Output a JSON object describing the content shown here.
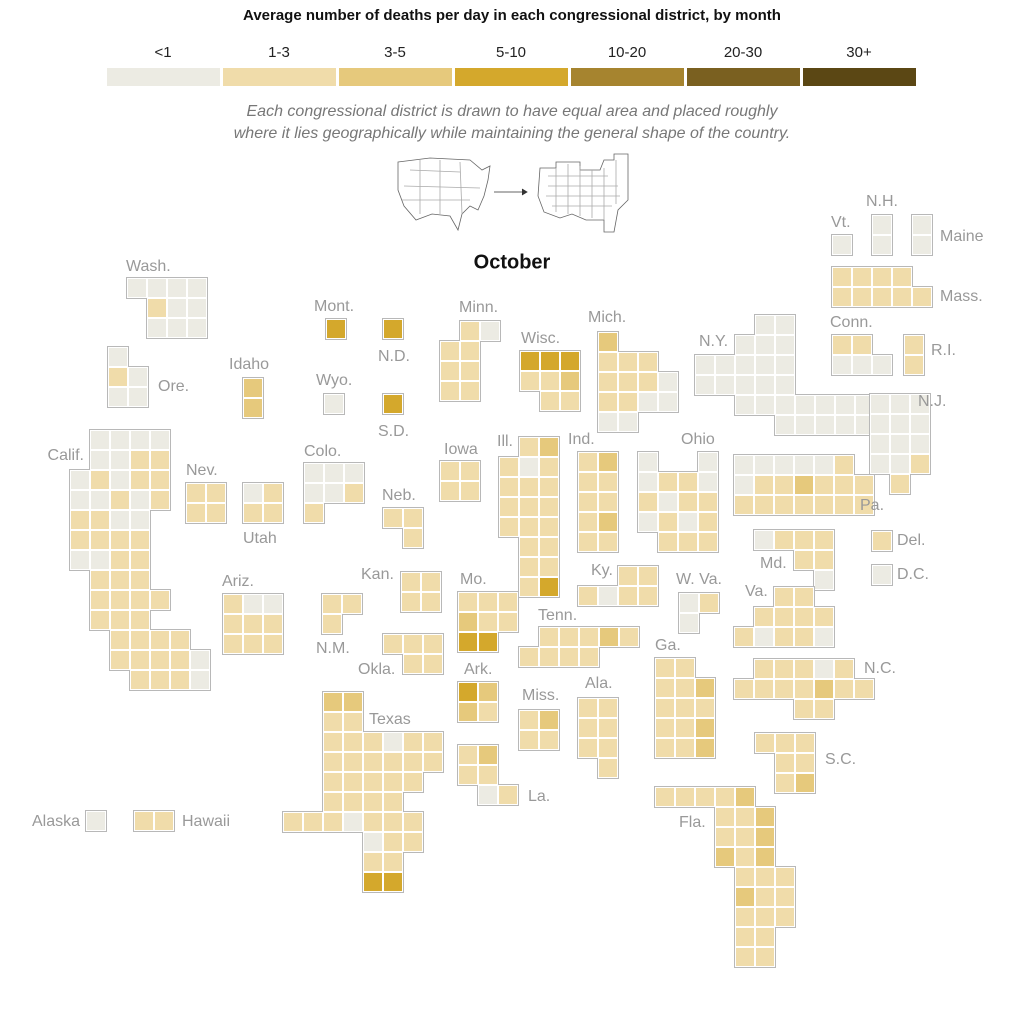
{
  "legend": {
    "title": "Average number of deaths per day in each congressional district, by month",
    "bins": [
      {
        "label": "<1",
        "color": "#ecebe3"
      },
      {
        "label": "1-3",
        "color": "#f0dcaa"
      },
      {
        "label": "3-5",
        "color": "#e6c97c"
      },
      {
        "label": "5-10",
        "color": "#d4a82c"
      },
      {
        "label": "10-20",
        "color": "#a6842f"
      },
      {
        "label": "20-30",
        "color": "#7a6020"
      },
      {
        "label": "30+",
        "color": "#5b4714"
      }
    ]
  },
  "note_lines": [
    "Each congressional district is drawn to have equal area and placed roughly",
    "where it lies geographically while maintaining the general shape of the country."
  ],
  "month": "October",
  "states": [
    {
      "label": "Wash.",
      "districts": [
        "<1",
        "<1",
        "<1",
        "<1",
        "1-3",
        "<1",
        "<1",
        "<1",
        "<1",
        "<1"
      ]
    },
    {
      "label": "Ore.",
      "districts": [
        "<1",
        "1-3",
        "<1",
        "<1",
        "<1"
      ]
    },
    {
      "label": "Calif.",
      "districts": [
        "<1",
        "<1",
        "<1",
        "<1",
        "<1",
        "<1",
        "1-3",
        "1-3",
        "<1",
        "1-3",
        "<1",
        "1-3",
        "1-3",
        "<1",
        "<1",
        "1-3",
        "<1",
        "1-3",
        "1-3",
        "1-3",
        "<1",
        "<1",
        "1-3",
        "1-3",
        "1-3",
        "1-3",
        "<1",
        "<1",
        "1-3",
        "1-3",
        "1-3",
        "1-3",
        "1-3",
        "1-3",
        "1-3",
        "1-3",
        "1-3",
        "1-3",
        "1-3",
        "1-3",
        "1-3",
        "1-3",
        "1-3",
        "1-3",
        "1-3",
        "1-3",
        "1-3",
        "1-3",
        "<1",
        "1-3",
        "1-3",
        "1-3",
        "<1"
      ]
    },
    {
      "label": "Idaho",
      "districts": [
        "3-5",
        "3-5"
      ]
    },
    {
      "label": "Mont.",
      "districts": [
        "5-10"
      ]
    },
    {
      "label": "N.D.",
      "districts": [
        "5-10"
      ]
    },
    {
      "label": "Wyo.",
      "districts": [
        "<1"
      ]
    },
    {
      "label": "S.D.",
      "districts": [
        "5-10"
      ]
    },
    {
      "label": "Nev.",
      "districts": [
        "1-3",
        "1-3",
        "1-3",
        "1-3"
      ]
    },
    {
      "label": "Utah",
      "districts": [
        "<1",
        "1-3",
        "1-3",
        "1-3"
      ]
    },
    {
      "label": "Colo.",
      "districts": [
        "<1",
        "<1",
        "<1",
        "<1",
        "<1",
        "1-3",
        "1-3"
      ]
    },
    {
      "label": "Ariz.",
      "districts": [
        "1-3",
        "<1",
        "<1",
        "1-3",
        "1-3",
        "1-3",
        "1-3",
        "1-3",
        "1-3"
      ]
    },
    {
      "label": "N.M.",
      "districts": [
        "1-3",
        "1-3",
        "1-3"
      ]
    },
    {
      "label": "Neb.",
      "districts": [
        "1-3",
        "1-3",
        "1-3"
      ]
    },
    {
      "label": "Kan.",
      "districts": [
        "1-3",
        "1-3",
        "1-3",
        "1-3"
      ]
    },
    {
      "label": "Okla.",
      "districts": [
        "1-3",
        "1-3",
        "1-3",
        "1-3",
        "1-3"
      ]
    },
    {
      "label": "Texas",
      "districts": [
        "3-5",
        "3-5",
        "1-3",
        "1-3",
        "1-3",
        "1-3",
        "1-3",
        "<1",
        "1-3",
        "1-3",
        "1-3",
        "1-3",
        "1-3",
        "1-3",
        "1-3",
        "1-3",
        "1-3",
        "1-3",
        "1-3",
        "1-3",
        "1-3",
        "1-3",
        "1-3",
        "1-3",
        "1-3",
        "1-3",
        "1-3",
        "1-3",
        "<1",
        "1-3",
        "1-3",
        "1-3",
        "<1",
        "1-3",
        "1-3",
        "1-3",
        "1-3",
        "5-10",
        "5-10"
      ]
    },
    {
      "label": "Minn.",
      "districts": [
        "1-3",
        "<1",
        "1-3",
        "1-3",
        "1-3",
        "1-3",
        "1-3",
        "1-3"
      ]
    },
    {
      "label": "Iowa",
      "districts": [
        "1-3",
        "1-3",
        "1-3",
        "1-3"
      ]
    },
    {
      "label": "Wisc.",
      "districts": [
        "5-10",
        "5-10",
        "5-10",
        "1-3",
        "1-3",
        "3-5",
        "1-3",
        "1-3"
      ]
    },
    {
      "label": "Ill.",
      "districts": [
        "1-3",
        "3-5",
        "1-3",
        "<1",
        "1-3",
        "1-3",
        "1-3",
        "1-3",
        "1-3",
        "1-3",
        "1-3",
        "1-3",
        "1-3",
        "1-3",
        "1-3",
        "1-3",
        "1-3",
        "1-3",
        "1-3",
        "5-10"
      ]
    },
    {
      "label": "Ind.",
      "districts": [
        "1-3",
        "3-5",
        "1-3",
        "1-3",
        "1-3",
        "1-3",
        "1-3",
        "3-5",
        "1-3",
        "1-3"
      ]
    },
    {
      "label": "Mich.",
      "districts": [
        "3-5",
        "1-3",
        "1-3",
        "1-3",
        "1-3",
        "1-3",
        "1-3",
        "<1",
        "1-3",
        "1-3",
        "<1",
        "<1",
        "<1",
        "<1"
      ]
    },
    {
      "label": "Ohio",
      "districts": [
        "<1",
        "<1",
        "<1",
        "1-3",
        "1-3",
        "<1",
        "1-3",
        "<1",
        "1-3",
        "1-3",
        "<1",
        "1-3",
        "<1",
        "1-3",
        "1-3",
        "1-3",
        "1-3"
      ]
    },
    {
      "label": "Ky.",
      "districts": [
        "1-3",
        "1-3",
        "1-3",
        "<1",
        "1-3",
        "1-3"
      ]
    },
    {
      "label": "Tenn.",
      "districts": [
        "1-3",
        "1-3",
        "1-3",
        "3-5",
        "1-3",
        "1-3",
        "1-3",
        "1-3",
        "1-3"
      ]
    },
    {
      "label": "Mo.",
      "districts": [
        "1-3",
        "1-3",
        "1-3",
        "3-5",
        "1-3",
        "1-3",
        "5-10",
        "5-10"
      ]
    },
    {
      "label": "Ark.",
      "districts": [
        "5-10",
        "3-5",
        "3-5",
        "1-3"
      ]
    },
    {
      "label": "Miss.",
      "districts": [
        "1-3",
        "3-5",
        "1-3",
        "1-3"
      ]
    },
    {
      "label": "La.",
      "districts": [
        "1-3",
        "3-5",
        "1-3",
        "1-3",
        "<1",
        "1-3"
      ]
    },
    {
      "label": "Ala.",
      "districts": [
        "1-3",
        "1-3",
        "1-3",
        "1-3",
        "1-3",
        "1-3",
        "1-3"
      ]
    },
    {
      "label": "Ga.",
      "districts": [
        "1-3",
        "1-3",
        "1-3",
        "1-3",
        "3-5",
        "1-3",
        "1-3",
        "1-3",
        "1-3",
        "1-3",
        "3-5",
        "1-3",
        "1-3",
        "3-5"
      ]
    },
    {
      "label": "Fla.",
      "districts": [
        "1-3",
        "1-3",
        "1-3",
        "1-3",
        "3-5",
        "1-3",
        "1-3",
        "3-5",
        "1-3",
        "1-3",
        "3-5",
        "3-5",
        "1-3",
        "3-5",
        "1-3",
        "1-3",
        "1-3",
        "3-5",
        "1-3",
        "1-3",
        "1-3",
        "1-3",
        "1-3",
        "1-3",
        "1-3",
        "1-3",
        "1-3"
      ]
    },
    {
      "label": "N.Y.",
      "districts": [
        "<1",
        "<1",
        "<1",
        "<1",
        "<1",
        "<1",
        "<1",
        "<1",
        "<1",
        "<1",
        "<1",
        "<1",
        "<1",
        "<1",
        "<1",
        "<1",
        "<1",
        "<1",
        "<1",
        "<1",
        "<1",
        "<1",
        "<1",
        "<1",
        "<1",
        "<1",
        "<1"
      ]
    },
    {
      "label": "Pa.",
      "districts": [
        "<1",
        "<1",
        "<1",
        "<1",
        "<1",
        "1-3",
        "<1",
        "1-3",
        "1-3",
        "3-5",
        "1-3",
        "1-3",
        "1-3",
        "1-3",
        "1-3",
        "1-3",
        "1-3",
        "1-3",
        "1-3",
        "1-3"
      ]
    },
    {
      "label": "N.J.",
      "districts": [
        "<1",
        "<1",
        "<1",
        "<1",
        "<1",
        "<1",
        "<1",
        "<1",
        "<1",
        "<1",
        "<1",
        "1-3",
        "1-3"
      ]
    },
    {
      "label": "Md.",
      "districts": [
        "<1",
        "1-3",
        "1-3",
        "1-3",
        "1-3",
        "1-3",
        "<1"
      ]
    },
    {
      "label": "Del.",
      "districts": [
        "1-3"
      ]
    },
    {
      "label": "D.C.",
      "districts": [
        "<1"
      ]
    },
    {
      "label": "W. Va.",
      "districts": [
        "<1",
        "1-3",
        "<1"
      ]
    },
    {
      "label": "Va.",
      "districts": [
        "1-3",
        "1-3",
        "1-3",
        "1-3",
        "1-3",
        "1-3",
        "1-3",
        "<1",
        "1-3",
        "1-3",
        "<1"
      ]
    },
    {
      "label": "N.C.",
      "districts": [
        "1-3",
        "1-3",
        "1-3",
        "<1",
        "1-3",
        "1-3",
        "1-3",
        "1-3",
        "1-3",
        "3-5",
        "1-3",
        "1-3",
        "1-3",
        "1-3"
      ]
    },
    {
      "label": "S.C.",
      "districts": [
        "1-3",
        "1-3",
        "1-3",
        "1-3",
        "1-3",
        "1-3",
        "3-5"
      ]
    },
    {
      "label": "Vt.",
      "districts": [
        "<1"
      ]
    },
    {
      "label": "N.H.",
      "districts": [
        "<1",
        "<1"
      ]
    },
    {
      "label": "Maine",
      "districts": [
        "<1",
        "<1"
      ]
    },
    {
      "label": "Mass.",
      "districts": [
        "1-3",
        "1-3",
        "1-3",
        "1-3",
        "1-3",
        "1-3",
        "1-3",
        "1-3",
        "1-3"
      ]
    },
    {
      "label": "Conn.",
      "districts": [
        "1-3",
        "1-3",
        "<1",
        "<1",
        "<1"
      ]
    },
    {
      "label": "R.I.",
      "districts": [
        "1-3",
        "1-3"
      ]
    },
    {
      "label": "Alaska",
      "districts": [
        "<1"
      ]
    },
    {
      "label": "Hawaii",
      "districts": [
        "1-3",
        "1-3"
      ]
    }
  ]
}
